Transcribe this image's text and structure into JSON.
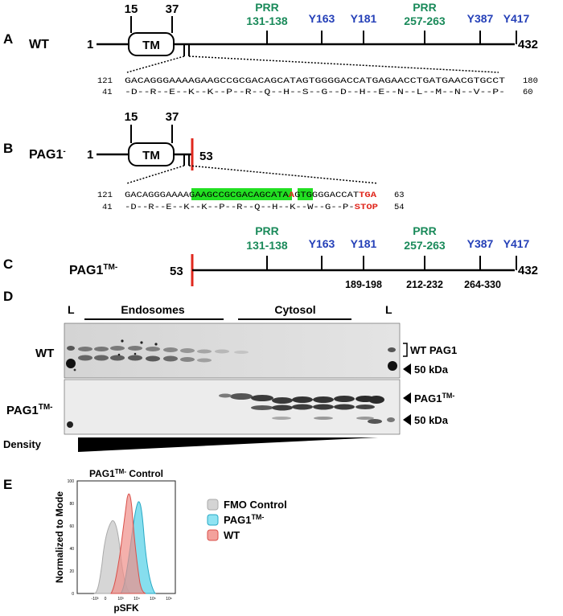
{
  "panelA": {
    "letter": "A",
    "label": "WT",
    "start": "1",
    "end": "432",
    "tm_label": "TM",
    "tm_start": "15",
    "tm_end": "37",
    "prr1": {
      "name": "PRR",
      "range": "131-138"
    },
    "prr2": {
      "name": "PRR",
      "range": "257-263"
    },
    "tyrosines": [
      "Y163",
      "Y181",
      "Y387",
      "Y417"
    ],
    "seq_dna": {
      "start": "121",
      "seq": "GACAGGGAAAAGAAGCCGCGACAGCATAGTGGGGACCATGAGAACCTGATGAACGTGCCT",
      "end": "180"
    },
    "seq_aa": {
      "start": "41",
      "seq": "-D--R--E--K--K--P--R--Q--H--S--G--D--H--E--N--L--M--N--V--P-",
      "end": "60"
    }
  },
  "panelB": {
    "letter": "B",
    "label": "PAG1",
    "label_sup": "-",
    "start": "1",
    "stop_pos": "53",
    "tm_label": "TM",
    "tm_start": "15",
    "tm_end": "37",
    "seq_dna": {
      "start": "121",
      "pre": "GACAGGGAAAAG",
      "hl1": "AAGCCGCGACAGCATA",
      "mut": "A",
      "hl2": "GTG",
      "post": "GGGACCAT",
      "stop": "TGA",
      "end": "63"
    },
    "seq_aa": {
      "start": "41",
      "seq": "-D--R--E--K--K--P--R--Q--H--K--W--G--P-",
      "stop": "STOP",
      "end": "54"
    }
  },
  "panelC": {
    "letter": "C",
    "label": "PAG1",
    "label_sup": "TM-",
    "start": "53",
    "end": "432",
    "prr1": {
      "name": "PRR",
      "range": "131-138"
    },
    "prr2": {
      "name": "PRR",
      "range": "257-263"
    },
    "tyrosines": [
      "Y163",
      "Y181",
      "Y387",
      "Y417"
    ],
    "regions": [
      "189-198",
      "212-232",
      "264-330"
    ]
  },
  "panelD": {
    "letter": "D",
    "ladder": "L",
    "endosomes": "Endosomes",
    "cytosol": "Cytosol",
    "row1_label": "WT",
    "row2_label": "PAG1",
    "row2_sup": "TM-",
    "wt_band": "WT PAG1",
    "kda": "50 kDa",
    "tm_band": "PAG1",
    "tm_band_sup": "TM-",
    "density": "Density"
  },
  "panelE": {
    "letter": "E",
    "title_main": "PAG1",
    "title_sup": "TM-",
    "title_rest": " Control",
    "ylabel": "Normalized to Mode",
    "xlabel": "pSFK",
    "legend": [
      {
        "label": "FMO Control",
        "sup": "",
        "color": "#c8c8c8"
      },
      {
        "label": "PAG1",
        "sup": "TM-",
        "color": "#3cc6e0"
      },
      {
        "label": "WT",
        "sup": "",
        "color": "#ee6f6a"
      }
    ],
    "ticks": [
      "0",
      "100",
      "80",
      "60",
      "40",
      "20"
    ],
    "xticks": [
      "-10³",
      "0",
      "10³",
      "10⁴",
      "10⁵",
      "10⁶"
    ]
  }
}
